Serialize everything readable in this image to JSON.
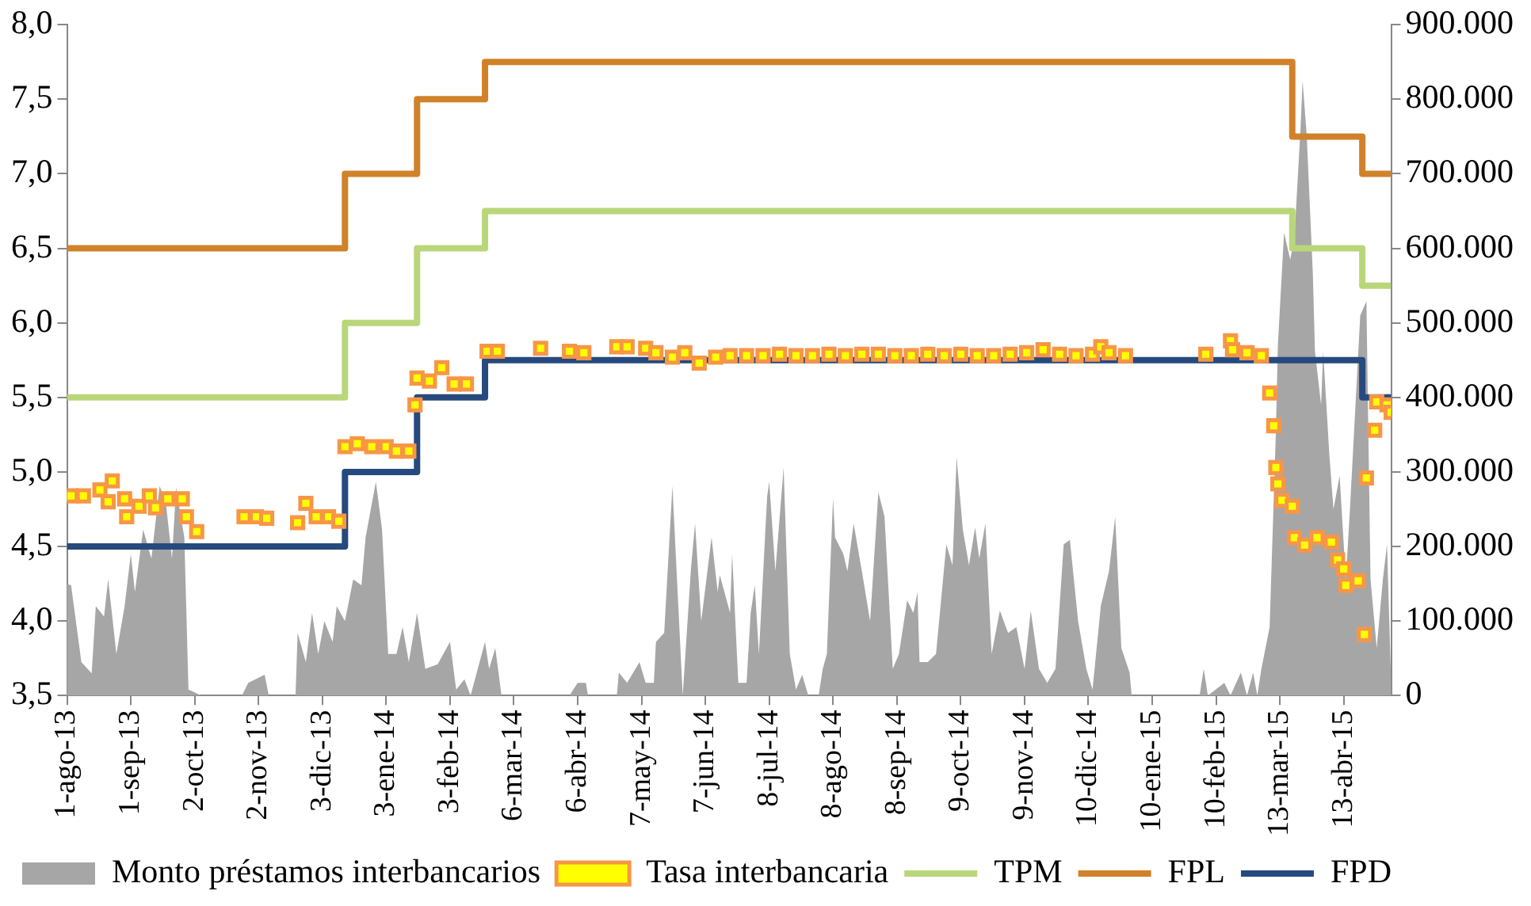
{
  "chart_data": {
    "type": "line",
    "legend": "bottom",
    "xlim": [
      "2013-08-01",
      "2015-05-06"
    ],
    "xticks": [
      {
        "value": "2013-08-01",
        "label": "1-ago-13"
      },
      {
        "value": "2013-09-01",
        "label": "1-sep-13"
      },
      {
        "value": "2013-10-02",
        "label": "2-oct-13"
      },
      {
        "value": "2013-11-02",
        "label": "2-nov-13"
      },
      {
        "value": "2013-12-03",
        "label": "3-dic-13"
      },
      {
        "value": "2014-01-03",
        "label": "3-ene-14"
      },
      {
        "value": "2014-02-03",
        "label": "3-feb-14"
      },
      {
        "value": "2014-03-06",
        "label": "6-mar-14"
      },
      {
        "value": "2014-04-06",
        "label": "6-abr-14"
      },
      {
        "value": "2014-05-07",
        "label": "7-may-14"
      },
      {
        "value": "2014-06-07",
        "label": "7-jun-14"
      },
      {
        "value": "2014-07-08",
        "label": "8-jul-14"
      },
      {
        "value": "2014-08-08",
        "label": "8-ago-14"
      },
      {
        "value": "2014-09-08",
        "label": "8-sep-14"
      },
      {
        "value": "2014-10-09",
        "label": "9-oct-14"
      },
      {
        "value": "2014-11-09",
        "label": "9-nov-14"
      },
      {
        "value": "2014-12-10",
        "label": "10-dic-14"
      },
      {
        "value": "2015-01-10",
        "label": "10-ene-15"
      },
      {
        "value": "2015-02-10",
        "label": "10-feb-15"
      },
      {
        "value": "2015-03-13",
        "label": "13-mar-15"
      },
      {
        "value": "2015-04-13",
        "label": "13-abr-15"
      }
    ],
    "ylim": [
      3.5,
      8.0
    ],
    "yticks": [
      {
        "value": 3.5,
        "label": "3,5"
      },
      {
        "value": 4.0,
        "label": "4,0"
      },
      {
        "value": 4.5,
        "label": "4,5"
      },
      {
        "value": 5.0,
        "label": "5,0"
      },
      {
        "value": 5.5,
        "label": "5,5"
      },
      {
        "value": 6.0,
        "label": "6,0"
      },
      {
        "value": 6.5,
        "label": "6,5"
      },
      {
        "value": 7.0,
        "label": "7,0"
      },
      {
        "value": 7.5,
        "label": "7,5"
      },
      {
        "value": 8.0,
        "label": "8,0"
      }
    ],
    "y2lim": [
      0,
      900000
    ],
    "y2ticks": [
      0,
      {
        "value": 100000,
        "label": "100.000"
      },
      {
        "value": 200000,
        "label": "200.000"
      },
      {
        "value": 300000,
        "label": "300.000"
      },
      {
        "value": 400000,
        "label": "400.000"
      },
      {
        "value": 500000,
        "label": "500.000"
      },
      {
        "value": 600000,
        "label": "600.000"
      },
      {
        "value": 700000,
        "label": "700.000"
      },
      {
        "value": 800000,
        "label": "800.000"
      },
      {
        "value": 900000,
        "label": "900.000"
      }
    ],
    "series": [
      {
        "name": "Monto préstamos interbancarios",
        "type": "area",
        "axis": "y2",
        "color": "#a6a6a6",
        "x": [
          "2013-08-01",
          "2013-08-03",
          "2013-08-08",
          "2013-08-13",
          "2013-08-15",
          "2013-08-19",
          "2013-08-21",
          "2013-08-25",
          "2013-08-29",
          "2013-09-01",
          "2013-09-03",
          "2013-09-07",
          "2013-09-11",
          "2013-09-15",
          "2013-09-18",
          "2013-09-21",
          "2013-09-23",
          "2013-09-27",
          "2013-09-29",
          "2013-10-03",
          "2013-10-05",
          "2013-10-25",
          "2013-10-28",
          "2013-11-05",
          "2013-11-07",
          "2013-11-20",
          "2013-11-21",
          "2013-11-25",
          "2013-11-28",
          "2013-12-01",
          "2013-12-04",
          "2013-12-08",
          "2013-12-10",
          "2013-12-14",
          "2013-12-18",
          "2013-12-22",
          "2013-12-24",
          "2013-12-29",
          "2014-01-01",
          "2014-01-04",
          "2014-01-08",
          "2014-01-11",
          "2014-01-14",
          "2014-01-18",
          "2014-01-22",
          "2014-01-28",
          "2014-02-03",
          "2014-02-06",
          "2014-02-10",
          "2014-02-13",
          "2014-02-20",
          "2014-02-22",
          "2014-02-25",
          "2014-02-28",
          "2014-04-02",
          "2014-04-06",
          "2014-04-10",
          "2014-04-11",
          "2014-04-25",
          "2014-04-26",
          "2014-04-30",
          "2014-05-06",
          "2014-05-09",
          "2014-05-13",
          "2014-05-14",
          "2014-05-18",
          "2014-05-22",
          "2014-05-27",
          "2014-05-31",
          "2014-06-02",
          "2014-06-05",
          "2014-06-10",
          "2014-06-13",
          "2014-06-14",
          "2014-06-19",
          "2014-06-20",
          "2014-06-23",
          "2014-06-27",
          "2014-06-29",
          "2014-07-01",
          "2014-07-03",
          "2014-07-07",
          "2014-07-08",
          "2014-07-11",
          "2014-07-15",
          "2014-07-18",
          "2014-07-21",
          "2014-07-24",
          "2014-07-27",
          "2014-08-01",
          "2014-08-03",
          "2014-08-05",
          "2014-08-08",
          "2014-08-09",
          "2014-08-13",
          "2014-08-15",
          "2014-08-18",
          "2014-08-22",
          "2014-08-26",
          "2014-08-30",
          "2014-09-02",
          "2014-09-06",
          "2014-09-09",
          "2014-09-13",
          "2014-09-16",
          "2014-09-18",
          "2014-09-19",
          "2014-09-23",
          "2014-09-27",
          "2014-10-02",
          "2014-10-05",
          "2014-10-07",
          "2014-10-10",
          "2014-10-13",
          "2014-10-16",
          "2014-10-18",
          "2014-10-21",
          "2014-10-24",
          "2014-10-28",
          "2014-11-01",
          "2014-11-05",
          "2014-11-09",
          "2014-11-12",
          "2014-11-16",
          "2014-11-20",
          "2014-11-24",
          "2014-11-28",
          "2014-12-01",
          "2014-12-05",
          "2014-12-09",
          "2014-12-12",
          "2014-12-16",
          "2014-12-20",
          "2014-12-23",
          "2014-12-26",
          "2014-12-30",
          "2014-12-31",
          "2015-02-02",
          "2015-02-04",
          "2015-02-06",
          "2015-02-14",
          "2015-02-17",
          "2015-02-22",
          "2015-02-25",
          "2015-02-28",
          "2015-03-02",
          "2015-03-04",
          "2015-03-08",
          "2015-03-11",
          "2015-03-12",
          "2015-03-15",
          "2015-03-18",
          "2015-03-20",
          "2015-03-23",
          "2015-03-24",
          "2015-03-26",
          "2015-03-29",
          "2015-03-30",
          "2015-04-02",
          "2015-04-03",
          "2015-04-06",
          "2015-04-08",
          "2015-04-11",
          "2015-04-14",
          "2015-04-16",
          "2015-04-21",
          "2015-04-24",
          "2015-04-26",
          "2015-04-29",
          "2015-05-02",
          "2015-05-04",
          "2015-05-06"
        ],
        "values": [
          150000,
          148000,
          45000,
          30000,
          120000,
          106000,
          156000,
          56000,
          120000,
          190000,
          139000,
          223000,
          184000,
          281000,
          259000,
          184000,
          279000,
          212000,
          8000,
          3000,
          0,
          0,
          17000,
          28000,
          0,
          0,
          84000,
          45000,
          111000,
          56000,
          100000,
          72000,
          120000,
          100000,
          156000,
          148000,
          212000,
          287000,
          223000,
          56000,
          56000,
          92000,
          45000,
          111000,
          36000,
          42000,
          72000,
          8000,
          22000,
          0,
          72000,
          36000,
          64000,
          0,
          0,
          17000,
          17000,
          0,
          0,
          31000,
          17000,
          45000,
          17000,
          17000,
          72000,
          84000,
          281000,
          0,
          170000,
          231000,
          100000,
          212000,
          139000,
          162000,
          111000,
          190000,
          17000,
          17000,
          111000,
          148000,
          56000,
          267000,
          287000,
          167000,
          306000,
          56000,
          8000,
          28000,
          0,
          0,
          36000,
          56000,
          265000,
          212000,
          190000,
          167000,
          231000,
          167000,
          100000,
          273000,
          240000,
          36000,
          56000,
          128000,
          111000,
          139000,
          45000,
          45000,
          56000,
          203000,
          175000,
          320000,
          223000,
          175000,
          226000,
          184000,
          231000,
          56000,
          114000,
          84000,
          92000,
          36000,
          114000,
          36000,
          17000,
          36000,
          203000,
          209000,
          100000,
          36000,
          8000,
          120000,
          167000,
          240000,
          64000,
          31000,
          0,
          0,
          36000,
          0,
          17000,
          0,
          31000,
          0,
          31000,
          0,
          36000,
          92000,
          351000,
          470000,
          621000,
          585000,
          613000,
          760000,
          825000,
          752000,
          565000,
          462000,
          390000,
          462000,
          323000,
          250000,
          295000,
          156000,
          250000,
          510000,
          529000,
          156000,
          64000,
          156000,
          203000,
          17000
        ]
      },
      {
        "name": "Tasa interbancaria",
        "type": "scatter",
        "marker": "square",
        "color": "#ffff00",
        "x": [
          "2013-08-03",
          "2013-08-09",
          "2013-08-17",
          "2013-08-21",
          "2013-08-23",
          "2013-08-29",
          "2013-08-30",
          "2013-09-05",
          "2013-09-10",
          "2013-09-13",
          "2013-09-19",
          "2013-09-26",
          "2013-09-28",
          "2013-10-03",
          "2013-10-26",
          "2013-11-01",
          "2013-11-06",
          "2013-11-21",
          "2013-11-25",
          "2013-11-30",
          "2013-12-06",
          "2013-12-11",
          "2013-12-14",
          "2013-12-20",
          "2013-12-27",
          "2014-01-03",
          "2014-01-08",
          "2014-01-14",
          "2014-01-17",
          "2014-01-18",
          "2014-01-24",
          "2014-01-30",
          "2014-02-05",
          "2014-02-11",
          "2014-02-21",
          "2014-02-26",
          "2014-03-19",
          "2014-04-02",
          "2014-04-09",
          "2014-04-25",
          "2014-04-30",
          "2014-05-09",
          "2014-05-14",
          "2014-05-22",
          "2014-05-28",
          "2014-06-04",
          "2014-06-12",
          "2014-06-19",
          "2014-06-27",
          "2014-07-05",
          "2014-07-13",
          "2014-07-21",
          "2014-07-29",
          "2014-08-06",
          "2014-08-14",
          "2014-08-22",
          "2014-08-30",
          "2014-09-07",
          "2014-09-15",
          "2014-09-23",
          "2014-10-01",
          "2014-10-09",
          "2014-10-17",
          "2014-10-25",
          "2014-11-02",
          "2014-11-10",
          "2014-11-18",
          "2014-11-26",
          "2014-12-04",
          "2014-12-12",
          "2014-12-16",
          "2014-12-20",
          "2014-12-28",
          "2015-02-05",
          "2015-02-17",
          "2015-02-18",
          "2015-02-25",
          "2015-03-04",
          "2015-03-08",
          "2015-03-10",
          "2015-03-11",
          "2015-03-12",
          "2015-03-14",
          "2015-03-19",
          "2015-03-20",
          "2015-03-25",
          "2015-03-31",
          "2015-04-07",
          "2015-04-10",
          "2015-04-13",
          "2015-04-14",
          "2015-04-20",
          "2015-04-23",
          "2015-04-24",
          "2015-04-28",
          "2015-04-29",
          "2015-05-04",
          "2015-05-06"
        ],
        "values": [
          4.84,
          4.84,
          4.88,
          4.8,
          4.94,
          4.82,
          4.7,
          4.77,
          4.84,
          4.76,
          4.82,
          4.82,
          4.7,
          4.6,
          4.7,
          4.7,
          4.69,
          4.66,
          4.79,
          4.7,
          4.7,
          4.67,
          5.17,
          5.19,
          5.17,
          5.17,
          5.14,
          5.14,
          5.45,
          5.63,
          5.61,
          5.7,
          5.59,
          5.59,
          5.81,
          5.81,
          5.83,
          5.81,
          5.8,
          5.84,
          5.84,
          5.83,
          5.8,
          5.77,
          5.8,
          5.73,
          5.77,
          5.78,
          5.78,
          5.78,
          5.79,
          5.78,
          5.78,
          5.79,
          5.78,
          5.79,
          5.79,
          5.78,
          5.78,
          5.79,
          5.78,
          5.79,
          5.78,
          5.78,
          5.79,
          5.8,
          5.82,
          5.79,
          5.78,
          5.79,
          5.84,
          5.8,
          5.78,
          5.79,
          5.88,
          5.82,
          5.8,
          5.78,
          5.53,
          5.31,
          5.03,
          4.92,
          4.81,
          4.77,
          4.56,
          4.51,
          4.56,
          4.53,
          4.41,
          4.35,
          4.24,
          4.27,
          3.91,
          4.96,
          5.28,
          5.47,
          5.45,
          5.4
        ]
      },
      {
        "name": "TPM",
        "type": "step",
        "color": "#b9d77a",
        "x": [
          "2013-08-01",
          "2013-12-14",
          "2014-01-18",
          "2014-02-20",
          "2015-03-19",
          "2015-04-22",
          "2015-05-06"
        ],
        "values": [
          5.5,
          6.0,
          6.5,
          6.75,
          6.5,
          6.25,
          6.25
        ]
      },
      {
        "name": "FPL",
        "type": "step",
        "color": "#d0822a",
        "x": [
          "2013-08-01",
          "2013-12-14",
          "2014-01-18",
          "2014-02-20",
          "2015-03-19",
          "2015-04-22",
          "2015-05-06"
        ],
        "values": [
          6.5,
          7.0,
          7.5,
          7.75,
          7.25,
          7.0,
          7.0
        ]
      },
      {
        "name": "FPD",
        "type": "step",
        "color": "#264a7e",
        "x": [
          "2013-08-01",
          "2013-12-14",
          "2014-01-18",
          "2014-02-20",
          "2015-04-22",
          "2015-05-06"
        ],
        "values": [
          4.5,
          5.0,
          5.5,
          5.75,
          5.5,
          5.5
        ]
      }
    ]
  }
}
